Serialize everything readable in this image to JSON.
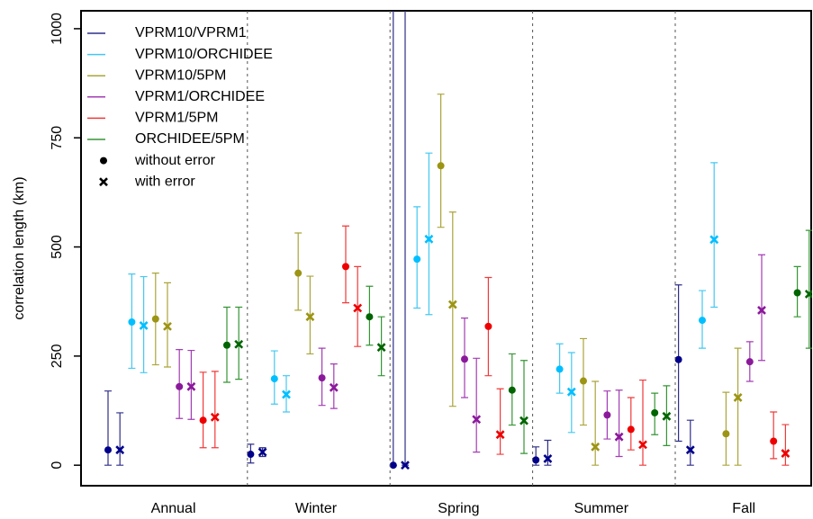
{
  "chart_data": {
    "type": "errorbar",
    "ylabel": "correlation length (km)",
    "categories": [
      "Annual",
      "Winter",
      "Spring",
      "Summer",
      "Fall"
    ],
    "ylim": [
      -47,
      1041
    ],
    "yticks": [
      0,
      250,
      500,
      750,
      1000
    ],
    "legend": "top-left",
    "markers": [
      {
        "label": "without error",
        "marker": "dot"
      },
      {
        "label": "with error",
        "marker": "cross"
      }
    ],
    "series": [
      {
        "name": "VPRM10/VPRM1",
        "color": "#2e2e8a",
        "marker_color": "#00008b",
        "without": {
          "values": [
            35,
            25,
            0,
            12,
            242
          ],
          "low": [
            0,
            5,
            0,
            0,
            55
          ],
          "high": [
            170,
            48,
            1100,
            42,
            413
          ]
        },
        "with": {
          "values": [
            35,
            30,
            0,
            15,
            35
          ],
          "low": [
            0,
            20,
            0,
            0,
            0
          ],
          "high": [
            120,
            40,
            1100,
            57,
            103
          ]
        }
      },
      {
        "name": "VPRM10/ORCHIDEE",
        "color": "#44c8f2",
        "marker_color": "#00bfff",
        "without": {
          "values": [
            328,
            198,
            472,
            220,
            332
          ],
          "low": [
            222,
            140,
            360,
            165,
            268
          ],
          "high": [
            438,
            262,
            592,
            278,
            400
          ]
        },
        "with": {
          "values": [
            320,
            162,
            518,
            168,
            517
          ],
          "low": [
            212,
            122,
            345,
            75,
            362
          ],
          "high": [
            432,
            205,
            715,
            258,
            693
          ]
        }
      },
      {
        "name": "VPRM10/5PM",
        "color": "#aaa53a",
        "marker_color": "#9c9414",
        "without": {
          "values": [
            335,
            440,
            686,
            193,
            72
          ],
          "low": [
            230,
            355,
            545,
            92,
            0
          ],
          "high": [
            440,
            532,
            850,
            290,
            167
          ]
        },
        "with": {
          "values": [
            318,
            340,
            368,
            42,
            155
          ],
          "low": [
            225,
            255,
            135,
            0,
            0
          ],
          "high": [
            418,
            433,
            580,
            192,
            268
          ]
        }
      },
      {
        "name": "VPRM1/ORCHIDEE",
        "color": "#a23db4",
        "marker_color": "#8b1a9b",
        "without": {
          "values": [
            180,
            200,
            243,
            115,
            237
          ],
          "low": [
            107,
            137,
            155,
            60,
            192
          ],
          "high": [
            265,
            268,
            337,
            170,
            283
          ]
        },
        "with": {
          "values": [
            180,
            178,
            105,
            65,
            355
          ],
          "low": [
            105,
            130,
            30,
            20,
            240
          ],
          "high": [
            263,
            232,
            245,
            172,
            482
          ]
        }
      },
      {
        "name": "VPRM1/5PM",
        "color": "#f03a3a",
        "marker_color": "#ee0000",
        "without": {
          "values": [
            103,
            455,
            318,
            82,
            55
          ],
          "low": [
            40,
            372,
            205,
            35,
            15
          ],
          "high": [
            213,
            548,
            430,
            155,
            122
          ]
        },
        "with": {
          "values": [
            110,
            360,
            70,
            47,
            27
          ],
          "low": [
            40,
            272,
            25,
            0,
            0
          ],
          "high": [
            215,
            455,
            175,
            195,
            93
          ]
        }
      },
      {
        "name": "ORCHIDEE/5PM",
        "color": "#359535",
        "marker_color": "#006400",
        "without": {
          "values": [
            275,
            340,
            172,
            120,
            395
          ],
          "low": [
            190,
            275,
            92,
            70,
            340
          ],
          "high": [
            362,
            410,
            255,
            165,
            455
          ]
        },
        "with": {
          "values": [
            277,
            270,
            102,
            112,
            392
          ],
          "low": [
            197,
            205,
            27,
            45,
            268
          ],
          "high": [
            362,
            340,
            240,
            182,
            538
          ]
        }
      }
    ]
  }
}
